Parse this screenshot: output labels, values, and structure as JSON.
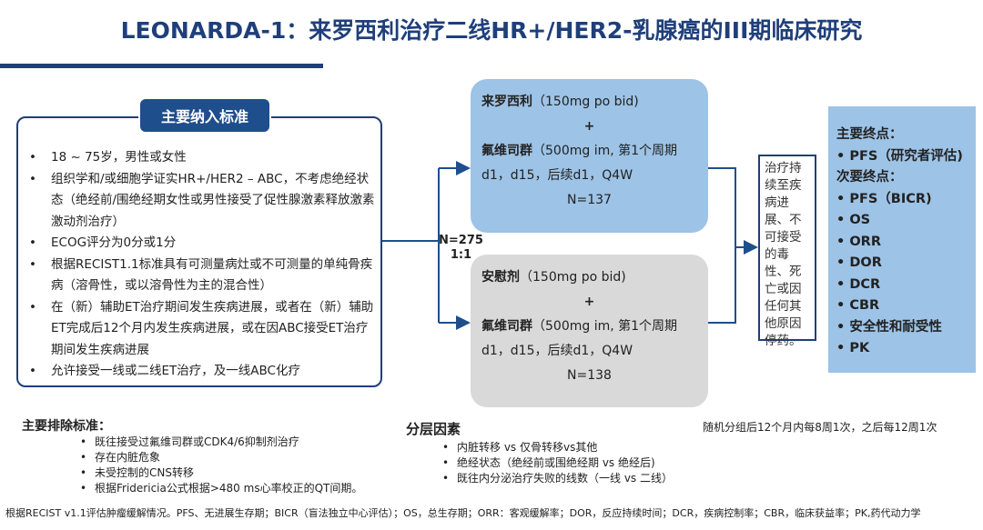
{
  "title": "LEONARDA-1：来罗西利治疗二线HR+/HER2-乳腺癌的III期临床研究",
  "inclusion": {
    "heading": "主要纳入标准",
    "items": [
      "18 ~ 75岁，男性或女性",
      "组织学和/或细胞学证实HR+/HER2 – ABC，不考虑绝经状态（绝经前/围绝经期女性或男性接受了促性腺激素释放激素激动剂治疗）",
      "ECOG评分为0分或1分",
      "根据RECIST1.1标准具有可测量病灶或不可测量的单纯骨疾病（溶骨性，或以溶骨性为主的混合性）",
      "在（新）辅助ET治疗期间发生疾病进展，或者在（新）辅助ET完成后12个月内发生疾病进展，或在因ABC接受ET治疗期间发生疾病进展",
      "允许接受一线或二线ET治疗，及一线ABC化疗"
    ]
  },
  "randomization": {
    "n": "N=275",
    "ratio": "1:1"
  },
  "arms": [
    {
      "drug1": "来罗西利",
      "dose1": "（150mg po bid)",
      "plus": "+",
      "drug2": "氟维司群",
      "dose2": "（500mg im, 第1个周期d1，d15，后续d1，Q4W",
      "n": "N=137",
      "color": "#9dc3e6"
    },
    {
      "drug1": "安慰剂",
      "dose1": "（150mg po bid)",
      "plus": "+",
      "drug2": "氟维司群",
      "dose2": "（500mg im, 第1个周期d1，d15，后续d1，Q4W",
      "n": "N=138",
      "color": "#d9d9d9"
    }
  ],
  "continuation": "治疗持续至疾病进展、不可接受的毒性、死亡或因任何其他原因停药。",
  "endpoints": {
    "primary_heading": "主要终点：",
    "primary": [
      "PFS（研究者评估)"
    ],
    "secondary_heading": "次要终点：",
    "secondary": [
      "PFS（BICR)",
      "OS",
      "ORR",
      "DOR",
      "DCR",
      "CBR",
      "安全性和耐受性",
      "PK"
    ]
  },
  "exclusion": {
    "heading": "主要排除标准：",
    "items": [
      "既往接受过氟维司群或CDK4/6抑制剂治疗",
      "存在内脏危象",
      "未受控制的CNS转移",
      "根据Fridericia公式根据>480 ms心率校正的QT间期。"
    ]
  },
  "stratification": {
    "heading": "分层因素",
    "items": [
      "内脏转移 vs 仅骨转移vs其他",
      "绝经状态（绝经前或围绝经期 vs 绝经后)",
      "既往内分泌治疗失败的线数（一线 vs 二线）"
    ]
  },
  "schedule": "随机分组后12个月内每8周1次，之后每12周1次",
  "footnote": "根据RECIST v1.1评估肿瘤缓解情况。PFS、无进展生存期；BICR（盲法独立中心评估）；OS，总生存期；ORR：客观缓解率；DOR，反应持续时间；DCR，疾病控制率；CBR，临床获益率；PK,药代动力学"
}
